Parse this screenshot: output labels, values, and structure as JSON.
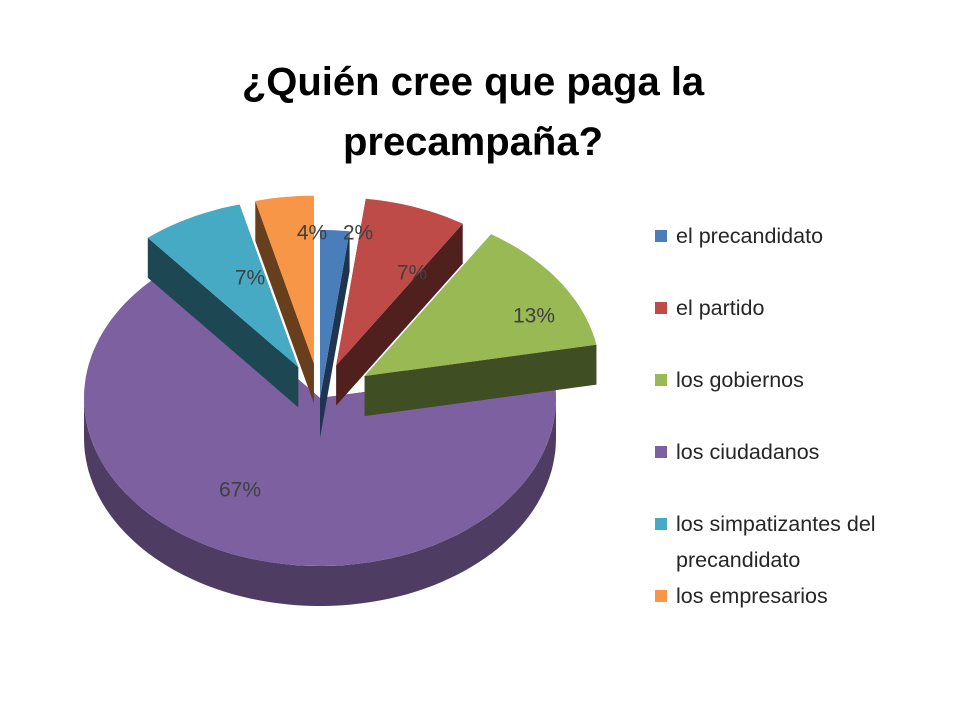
{
  "title_lines": [
    "¿Quién cree que paga la",
    "precampaña?"
  ],
  "chart_data": {
    "type": "pie",
    "title": "¿Quién cree que paga la precampaña?",
    "categories": [
      "el precandidato",
      "el partido",
      "los gobiernos",
      "los ciudadanos",
      "los simpatizantes del precandidato",
      "los empresarios"
    ],
    "values": [
      2,
      7,
      13,
      67,
      7,
      4
    ],
    "data_labels": [
      "2%",
      "7%",
      "13%",
      "67%",
      "7%",
      "4%"
    ],
    "colors": [
      "#4a7ebb",
      "#be4b48",
      "#98b954",
      "#7d60a0",
      "#46aac5",
      "#f79646"
    ],
    "legend_position": "right",
    "three_d": true,
    "exploded": true
  },
  "legend": [
    {
      "lines": [
        "el precandidato"
      ]
    },
    {
      "lines": [
        "el partido"
      ]
    },
    {
      "lines": [
        "los gobiernos"
      ]
    },
    {
      "lines": [
        "los ciudadanos"
      ]
    },
    {
      "lines": [
        "los simpatizantes del",
        "precandidato"
      ]
    },
    {
      "lines": [
        "los empresarios"
      ]
    }
  ]
}
